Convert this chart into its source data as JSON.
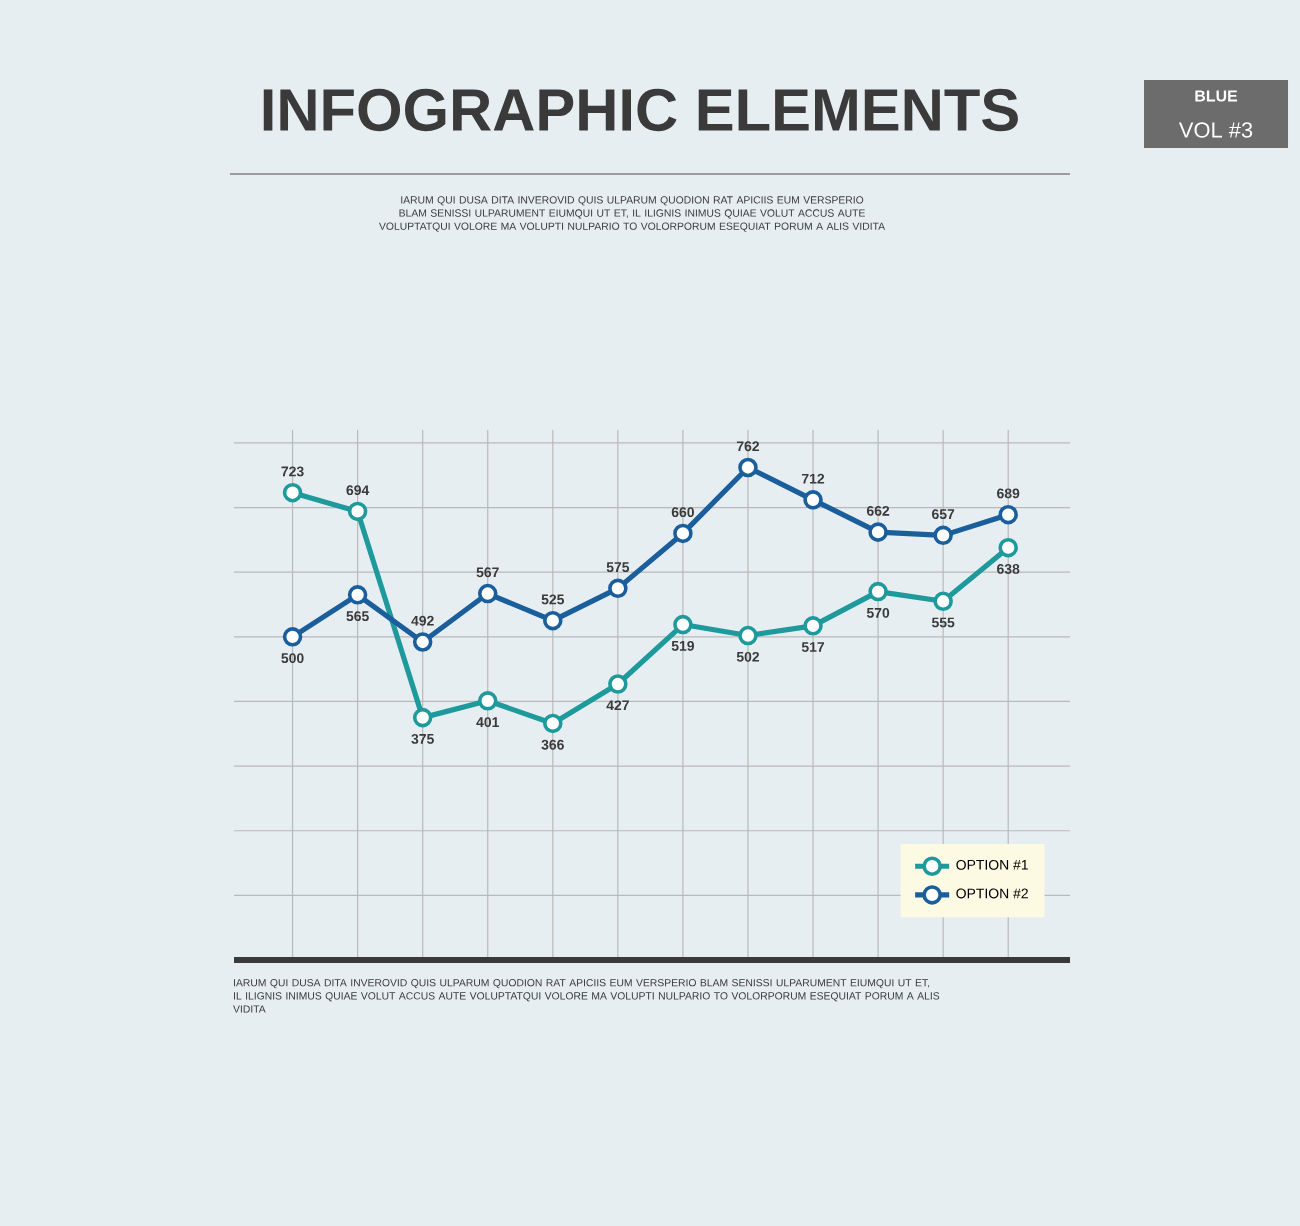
{
  "chart_data": {
    "type": "line",
    "title": "INFOGRAPHIC ELEMENTS",
    "subtitle": "IARUM QUI DUSA DITA INVEROVID QUIS ULPARUM QUODION RAT APICIIS EUM VERSPERIO BLAM SENISSI ULPARUMENT EIUMQUI UT ET, IL ILIGNIS INIMUS QUIAE VOLUT ACCUS AUTE VOLUPTATQUI VOLORE MA VOLUPTI NULPARIO TO VOLORPORUM ESEQUIAT PORUM A ALIS VIDITA",
    "annotations": [
      "BLUE",
      "VOL #3",
      "IARUM QUI DUSA DITA INVEROVID QUIS ULPARUM QUODION RAT APICIIS EUM VERSPERIO BLAM SENISSI ULPARUMENT EIUMQUI UT ET, IL ILIGNIS INIMUS QUIAE VOLUT ACCUS AUTE VOLUPTATQUI VOLORE MA VOLUPTI NULPARIO TO VOLORPORUM ESEQUIAT PORUM A ALIS VIDITA"
    ],
    "categories": [
      null,
      null,
      null,
      null,
      null,
      null,
      null,
      null,
      null,
      null,
      null,
      null
    ],
    "series": [
      {
        "name": "OPTION #1",
        "color": "#1e9a9c",
        "values": [
          723,
          694,
          375,
          401,
          366,
          427,
          519,
          502,
          517,
          570,
          555,
          638
        ]
      },
      {
        "name": "OPTION #2",
        "color": "#1b5e9c",
        "values": [
          500,
          565,
          492,
          567,
          525,
          575,
          660,
          762,
          712,
          662,
          657,
          689
        ]
      }
    ],
    "ylim": [
      0,
      820
    ],
    "grid": true,
    "legend": "bottom right",
    "tick_labels": false,
    "marker": "circle",
    "line_style": "solid",
    "data_labels": true
  }
}
